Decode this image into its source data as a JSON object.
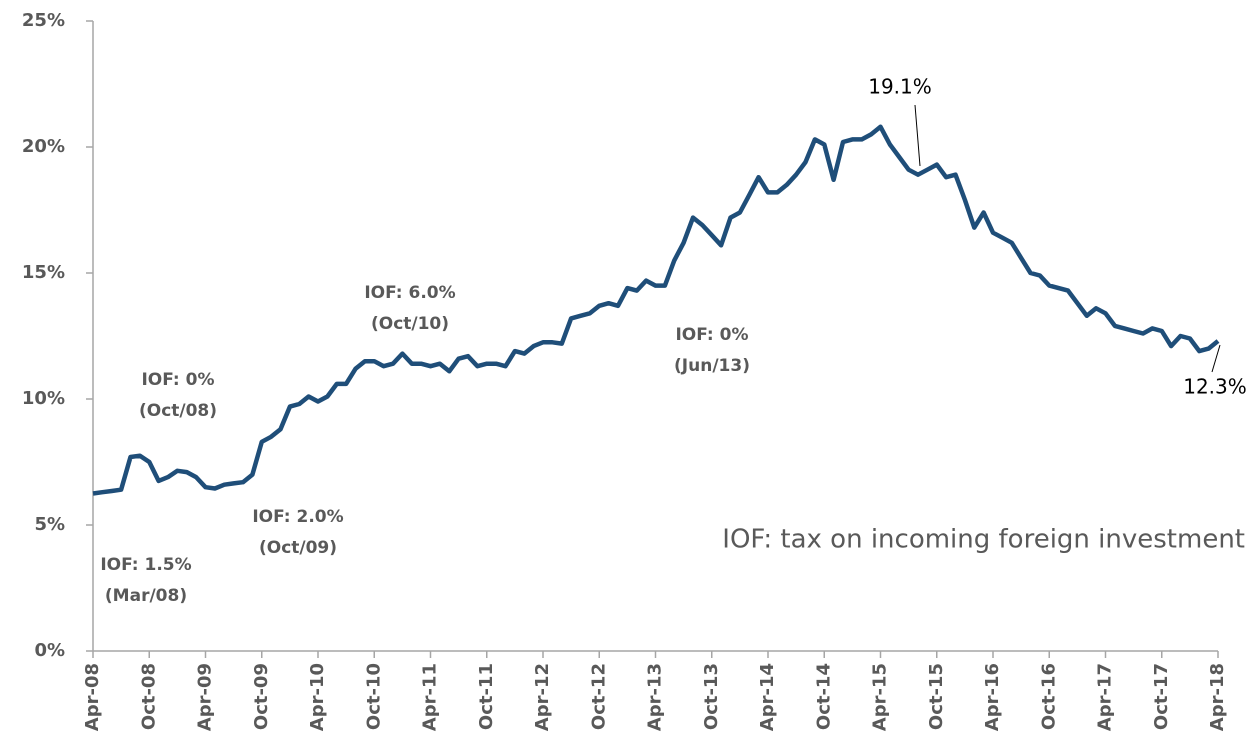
{
  "chart_data": {
    "type": "line",
    "categories": [
      "Apr-08",
      null,
      null,
      null,
      null,
      null,
      "Oct-08",
      null,
      null,
      null,
      null,
      null,
      "Apr-09",
      null,
      null,
      null,
      null,
      null,
      "Oct-09",
      null,
      null,
      null,
      null,
      null,
      "Apr-10",
      null,
      null,
      null,
      null,
      null,
      "Oct-10",
      null,
      null,
      null,
      null,
      null,
      "Apr-11",
      null,
      null,
      null,
      null,
      null,
      "Oct-11",
      null,
      null,
      null,
      null,
      null,
      "Apr-12",
      null,
      null,
      null,
      null,
      null,
      "Oct-12",
      null,
      null,
      null,
      null,
      null,
      "Apr-13",
      null,
      null,
      null,
      null,
      null,
      "Oct-13",
      null,
      null,
      null,
      null,
      null,
      "Apr-14",
      null,
      null,
      null,
      null,
      null,
      "Oct-14",
      null,
      null,
      null,
      null,
      null,
      "Apr-15",
      null,
      null,
      null,
      null,
      null,
      "Oct-15",
      null,
      null,
      null,
      null,
      null,
      "Apr-16",
      null,
      null,
      null,
      null,
      null,
      "Oct-16",
      null,
      null,
      null,
      null,
      null,
      "Apr-17",
      null,
      null,
      null,
      null,
      null,
      "Oct-17",
      null,
      null,
      null,
      null,
      null,
      "Apr-18"
    ],
    "series": [
      {
        "color": "#1f4e79",
        "values": [
          6.25,
          6.3,
          6.35,
          6.4,
          7.7,
          7.75,
          7.5,
          6.75,
          6.9,
          7.15,
          7.1,
          6.9,
          6.5,
          6.45,
          6.6,
          6.65,
          6.7,
          7.0,
          8.3,
          8.5,
          8.8,
          9.7,
          9.8,
          10.1,
          9.9,
          10.1,
          10.6,
          10.6,
          11.2,
          11.5,
          11.5,
          11.3,
          11.4,
          11.8,
          11.4,
          11.4,
          11.3,
          11.4,
          11.1,
          11.6,
          11.7,
          11.3,
          11.4,
          11.4,
          11.3,
          11.9,
          11.8,
          12.1,
          12.25,
          12.25,
          12.2,
          13.2,
          13.3,
          13.4,
          13.7,
          13.8,
          13.7,
          14.4,
          14.3,
          14.7,
          14.5,
          14.5,
          15.5,
          16.2,
          17.2,
          16.9,
          16.5,
          16.1,
          17.2,
          17.4,
          18.1,
          18.8,
          18.2,
          18.2,
          18.5,
          18.9,
          19.4,
          20.3,
          20.1,
          18.7,
          20.2,
          20.3,
          20.3,
          20.5,
          20.8,
          20.1,
          19.6,
          19.1,
          18.9,
          19.1,
          19.3,
          18.8,
          18.9,
          17.9,
          16.8,
          17.4,
          16.6,
          16.4,
          16.2,
          15.6,
          15.0,
          14.9,
          14.5,
          14.4,
          14.3,
          13.8,
          13.3,
          13.6,
          13.4,
          12.9,
          12.8,
          12.7,
          12.6,
          12.8,
          12.7,
          12.1,
          12.5,
          12.4,
          11.9,
          12.0,
          12.3
        ]
      }
    ],
    "ylim": [
      0,
      25
    ],
    "yticks": [
      {
        "value": 0,
        "label": "0%"
      },
      {
        "value": 5,
        "label": "5%"
      },
      {
        "value": 10,
        "label": "10%"
      },
      {
        "value": 15,
        "label": "15%"
      },
      {
        "value": 20,
        "label": "20%"
      },
      {
        "value": 25,
        "label": "25%"
      }
    ],
    "annotations": [
      [
        "IOF: 1.5%",
        "(Mar/08)"
      ],
      [
        "IOF: 0%",
        "(Oct/08)"
      ],
      [
        "IOF: 2.0%",
        "(Oct/09)"
      ],
      [
        "IOF: 6.0%",
        "(Oct/10)"
      ],
      [
        "IOF: 0%",
        "(Jun/13)"
      ]
    ],
    "point_labels": [
      "19.1%",
      "12.3%"
    ],
    "note": "IOF: tax on incoming foreign investment"
  }
}
